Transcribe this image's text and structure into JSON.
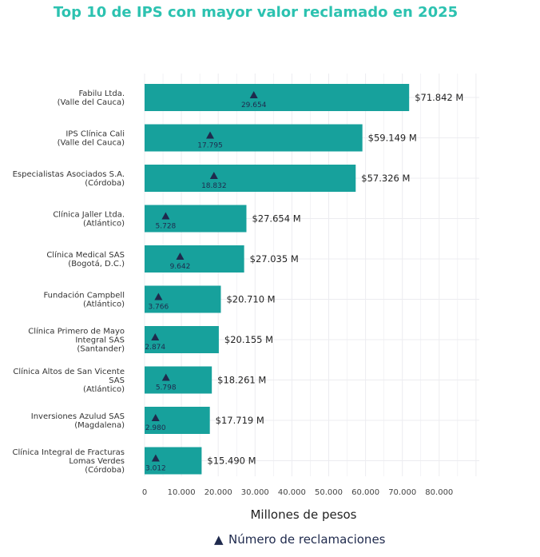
{
  "title": "Top 10 de IPS con mayor valor reclamado en 2025",
  "colors": {
    "title": "#2cc2b0",
    "bar": "#17a19c",
    "marker": "#1f2a4d",
    "grid": "#ececf0"
  },
  "chart_data": {
    "type": "bar",
    "orientation": "horizontal",
    "title": "Top 10 de IPS con mayor valor reclamado en 2025",
    "xlabel": "Millones de pesos",
    "ylabel": "",
    "xlim": [
      0,
      90000
    ],
    "x_ticks": [
      0,
      10000,
      20000,
      30000,
      40000,
      50000,
      60000,
      70000,
      80000
    ],
    "x_tick_labels": [
      "0",
      "10.000",
      "20.000",
      "30.000",
      "40.000",
      "50.000",
      "60.000",
      "70.000",
      "80.000"
    ],
    "categories": [
      [
        "Fabilu Ltda.",
        "(Valle del Cauca)"
      ],
      [
        "IPS Clínica Cali",
        "(Valle del Cauca)"
      ],
      [
        "Especialistas Asociados S.A.",
        "(Córdoba)"
      ],
      [
        "Clínica Jaller Ltda.",
        "(Atlántico)"
      ],
      [
        "Clínica Medical SAS",
        "(Bogotá, D.C.)"
      ],
      [
        "Fundación Campbell",
        "(Atlántico)"
      ],
      [
        "Clínica Primero de Mayo",
        "Integral SAS",
        "(Santander)"
      ],
      [
        "Clínica Altos de San Vicente",
        "SAS",
        "(Atlántico)"
      ],
      [
        "Inversiones Azulud SAS",
        "(Magdalena)"
      ],
      [
        "Clínica Integral de Fracturas",
        "Lomas Verdes",
        "(Córdoba)"
      ]
    ],
    "series": [
      {
        "name": "Millones de pesos",
        "values": [
          71842,
          59149,
          57326,
          27654,
          27035,
          20710,
          20155,
          18261,
          17719,
          15490
        ],
        "value_labels": [
          "$71.842 M",
          "$59.149 M",
          "$57.326 M",
          "$27.654 M",
          "$27.035 M",
          "$20.710 M",
          "$20.155 M",
          "$18.261 M",
          "$17.719 M",
          "$15.490 M"
        ]
      },
      {
        "name": "Número de reclamaciones",
        "values": [
          29654,
          17795,
          18832,
          5728,
          9642,
          3766,
          2874,
          5798,
          2980,
          3012
        ],
        "value_labels": [
          "29.654",
          "17.795",
          "18.832",
          "5.728",
          "9.642",
          "3.766",
          "2.874",
          "5.798",
          "2.980",
          "3.012"
        ]
      }
    ],
    "legend": {
      "position": "bottom",
      "symbol": "▲",
      "label": "Número de reclamaciones"
    },
    "grid": true
  }
}
